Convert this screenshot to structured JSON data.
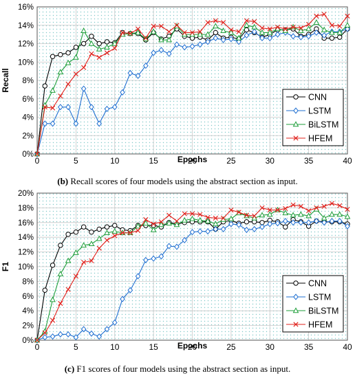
{
  "chart_data": [
    {
      "type": "line",
      "caption_label": "(b)",
      "caption_text": "Recall scores of four models using the abstract section as input.",
      "xlabel": "Epochs",
      "ylabel": "Recall",
      "xlim": [
        0,
        40
      ],
      "ylim": [
        0,
        16
      ],
      "x_ticks": [
        0,
        5,
        10,
        15,
        20,
        25,
        30,
        35,
        40
      ],
      "y_ticks": [
        0,
        2,
        4,
        6,
        8,
        10,
        12,
        14,
        16
      ],
      "y_tick_labels": [
        "0%",
        "2%",
        "4%",
        "6%",
        "8%",
        "10%",
        "12%",
        "14%",
        "16%"
      ],
      "grid": true,
      "legend_position": "bottom-right",
      "x": [
        0,
        1,
        2,
        3,
        4,
        5,
        6,
        7,
        8,
        9,
        10,
        11,
        12,
        13,
        14,
        15,
        16,
        17,
        18,
        19,
        20,
        21,
        22,
        23,
        24,
        25,
        26,
        27,
        28,
        29,
        30,
        31,
        32,
        33,
        34,
        35,
        36,
        37,
        38,
        39,
        40
      ],
      "series": [
        {
          "name": "CNN",
          "color": "#000000",
          "marker": "circle",
          "values": [
            0,
            7.4,
            10.6,
            10.8,
            11.0,
            11.6,
            12.0,
            12.8,
            12.0,
            12.2,
            12.1,
            13.2,
            13.1,
            13.1,
            12.4,
            13.2,
            12.5,
            12.8,
            13.6,
            12.8,
            12.6,
            12.7,
            12.4,
            13.2,
            12.6,
            12.7,
            12.5,
            13.5,
            13.2,
            12.7,
            13.0,
            13.5,
            13.5,
            13.6,
            12.8,
            13.0,
            13.6,
            12.6,
            12.6,
            12.7,
            13.6
          ]
        },
        {
          "name": "LSTM",
          "color": "#1f6fd1",
          "marker": "diamond",
          "values": [
            0,
            3.3,
            3.3,
            5.1,
            5.1,
            3.3,
            7.1,
            5.1,
            3.3,
            4.9,
            5.1,
            6.7,
            8.8,
            8.5,
            9.6,
            11.0,
            11.3,
            10.9,
            11.9,
            11.6,
            11.7,
            11.9,
            12.2,
            12.6,
            12.4,
            12.5,
            12.2,
            12.9,
            13.3,
            12.6,
            12.6,
            13.0,
            13.2,
            12.8,
            12.7,
            12.8,
            13.2,
            12.9,
            13.3,
            13.3,
            13.6
          ]
        },
        {
          "name": "BiLSTM",
          "color": "#1e9e3a",
          "marker": "triangle",
          "values": [
            0,
            5.3,
            6.9,
            8.9,
            9.9,
            10.5,
            13.4,
            12.0,
            11.4,
            11.6,
            12.0,
            13.0,
            13.1,
            13.2,
            12.5,
            13.3,
            12.4,
            12.4,
            13.9,
            13.0,
            13.0,
            13.0,
            13.0,
            13.9,
            13.4,
            13.2,
            12.6,
            14.0,
            13.8,
            13.2,
            13.2,
            13.6,
            13.4,
            13.8,
            13.4,
            13.6,
            14.3,
            13.5,
            13.2,
            13.2,
            14.0
          ]
        },
        {
          "name": "HFEM",
          "color": "#e0201b",
          "marker": "x",
          "values": [
            0,
            5.1,
            5.0,
            6.3,
            7.6,
            8.7,
            9.4,
            10.9,
            10.5,
            11.0,
            11.5,
            13.2,
            13.1,
            13.6,
            12.6,
            13.9,
            13.9,
            13.3,
            14.0,
            13.2,
            13.2,
            13.3,
            14.3,
            14.5,
            14.3,
            13.5,
            13.3,
            14.5,
            14.4,
            13.7,
            13.6,
            13.8,
            13.6,
            13.8,
            13.7,
            14.1,
            15.0,
            15.2,
            14.0,
            13.9,
            15.0
          ]
        }
      ]
    },
    {
      "type": "line",
      "caption_label": "(c)",
      "caption_text": "F1 scores of four models using the abstract section as input.",
      "xlabel": "Epochs",
      "ylabel": "F1",
      "xlim": [
        0,
        40
      ],
      "ylim": [
        0,
        20
      ],
      "x_ticks": [
        0,
        5,
        10,
        15,
        20,
        25,
        30,
        35,
        40
      ],
      "y_ticks": [
        0,
        2,
        4,
        6,
        8,
        10,
        12,
        14,
        16,
        18,
        20
      ],
      "y_tick_labels": [
        "0%",
        "2%",
        "4%",
        "6%",
        "8%",
        "10%",
        "12%",
        "14%",
        "16%",
        "18%",
        "20%"
      ],
      "grid": true,
      "legend_position": "bottom-right",
      "x": [
        0,
        1,
        2,
        3,
        4,
        5,
        6,
        7,
        8,
        9,
        10,
        11,
        12,
        13,
        14,
        15,
        16,
        17,
        18,
        19,
        20,
        21,
        22,
        23,
        24,
        25,
        26,
        27,
        28,
        29,
        30,
        31,
        32,
        33,
        34,
        35,
        36,
        37,
        38,
        39,
        40
      ],
      "series": [
        {
          "name": "CNN",
          "color": "#000000",
          "marker": "circle",
          "values": [
            0,
            6.8,
            10.2,
            12.9,
            14.4,
            14.7,
            15.4,
            14.7,
            15.1,
            15.4,
            15.6,
            15.0,
            14.9,
            15.6,
            15.6,
            15.6,
            15.4,
            16.0,
            15.8,
            16.0,
            16.1,
            16.1,
            16.1,
            15.1,
            16.1,
            16.3,
            15.9,
            16.1,
            16.1,
            16.0,
            16.3,
            16.1,
            15.4,
            16.4,
            16.1,
            15.5,
            16.2,
            16.1,
            16.1,
            16.1,
            15.8
          ]
        },
        {
          "name": "LSTM",
          "color": "#1f6fd1",
          "marker": "diamond",
          "values": [
            0,
            0.4,
            0.5,
            0.8,
            0.8,
            0.4,
            1.5,
            0.9,
            0.5,
            1.5,
            2.4,
            5.6,
            6.8,
            8.7,
            10.9,
            11.1,
            11.4,
            12.8,
            12.7,
            13.6,
            14.7,
            14.8,
            14.8,
            15.1,
            15.1,
            15.8,
            15.7,
            15.0,
            15.1,
            15.4,
            15.8,
            15.9,
            16.2,
            16.0,
            16.0,
            16.0,
            16.2,
            16.0,
            16.2,
            16.2,
            15.5
          ]
        },
        {
          "name": "BiLSTM",
          "color": "#1e9e3a",
          "marker": "triangle",
          "values": [
            0,
            1.2,
            5.5,
            9.0,
            10.8,
            11.9,
            12.9,
            13.1,
            13.8,
            14.6,
            14.8,
            14.6,
            14.6,
            15.5,
            15.9,
            15.0,
            15.7,
            15.9,
            15.7,
            16.3,
            16.5,
            16.3,
            16.2,
            15.8,
            16.4,
            16.5,
            17.3,
            16.9,
            16.6,
            17.0,
            17.1,
            17.7,
            17.3,
            17.0,
            17.1,
            16.9,
            17.8,
            16.6,
            17.1,
            17.1,
            16.8
          ]
        },
        {
          "name": "HFEM",
          "color": "#e0201b",
          "marker": "x",
          "values": [
            0,
            1.0,
            2.7,
            5.0,
            6.9,
            8.7,
            10.6,
            10.8,
            12.5,
            13.6,
            14.2,
            14.6,
            14.6,
            14.9,
            16.4,
            15.8,
            16.1,
            17.0,
            16.2,
            17.2,
            17.2,
            17.1,
            16.7,
            16.6,
            16.6,
            17.7,
            17.4,
            17.0,
            16.9,
            18.0,
            17.7,
            17.7,
            17.9,
            18.4,
            18.2,
            17.6,
            18.0,
            18.2,
            18.6,
            18.3,
            17.8
          ]
        }
      ]
    }
  ]
}
